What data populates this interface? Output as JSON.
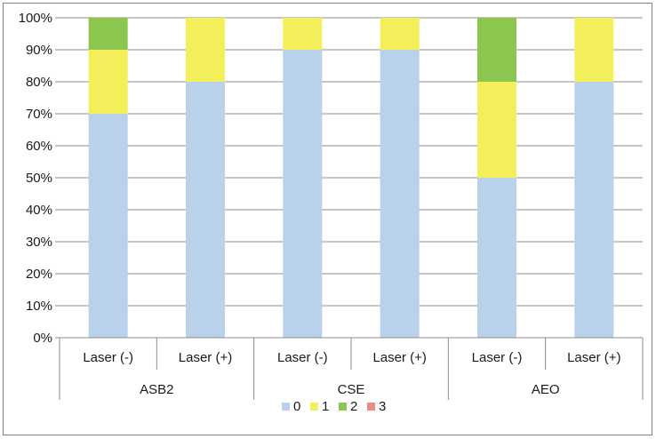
{
  "chart_data": {
    "type": "bar",
    "stacked": true,
    "percent": true,
    "groups": [
      {
        "label": "ASB2",
        "categories": [
          "Laser (-)",
          "Laser (+)"
        ]
      },
      {
        "label": "CSE",
        "categories": [
          "Laser (-)",
          "Laser (+)"
        ]
      },
      {
        "label": "AEO",
        "categories": [
          "Laser (-)",
          "Laser (+)"
        ]
      }
    ],
    "categories": [
      "Laser (-)",
      "Laser (+)",
      "Laser (-)",
      "Laser (+)",
      "Laser (-)",
      "Laser (+)"
    ],
    "series": [
      {
        "name": "0",
        "color": "#b9d1ea",
        "values": [
          70,
          80,
          90,
          90,
          50,
          80
        ]
      },
      {
        "name": "1",
        "color": "#f3ef5a",
        "values": [
          20,
          20,
          10,
          10,
          30,
          20
        ]
      },
      {
        "name": "2",
        "color": "#8dc64e",
        "values": [
          10,
          0,
          0,
          0,
          20,
          0
        ]
      },
      {
        "name": "3",
        "color": "#ee8a8a",
        "values": [
          0,
          0,
          0,
          0,
          0,
          0
        ]
      }
    ],
    "yticks": [
      "0%",
      "10%",
      "20%",
      "30%",
      "40%",
      "50%",
      "60%",
      "70%",
      "80%",
      "90%",
      "100%"
    ],
    "ylim": [
      0,
      100
    ],
    "grid": true,
    "legend": "bottom",
    "title": "",
    "xlabel": "",
    "ylabel": ""
  }
}
